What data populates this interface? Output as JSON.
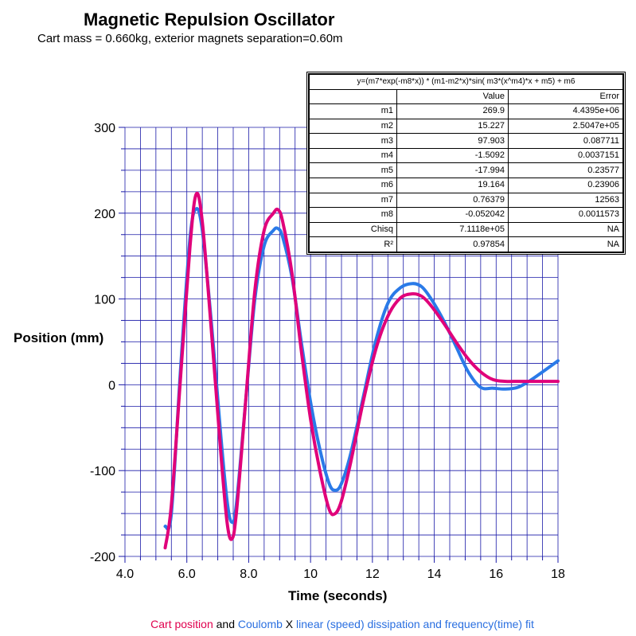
{
  "title": "Magnetic Repulsion Oscillator",
  "subtitle": "Cart mass = 0.660kg, exterior magnets separation=0.60m",
  "caption": {
    "part1": "Cart position",
    "part2": " and ",
    "part3": "Coulomb",
    "part4": " X ",
    "part5": "linear (speed) dissipation and frequency(time) fit"
  },
  "colors": {
    "measured": "#e0007a",
    "fit": "#2a7ae8",
    "grid": "#1a1aa8",
    "caption_red": "#e0004e",
    "caption_blue": "#2a6fe0"
  },
  "fit_table": {
    "equation": "y=(m7*exp(-m8*x)) * (m1-m2*x)*sin( m3*(x^m4)*x + m5) + m6",
    "header": {
      "value": "Value",
      "error": "Error"
    },
    "rows": [
      {
        "name": "m1",
        "value": "269.9",
        "error": "4.4395e+06"
      },
      {
        "name": "m2",
        "value": "15.227",
        "error": "2.5047e+05"
      },
      {
        "name": "m3",
        "value": "97.903",
        "error": "0.087711"
      },
      {
        "name": "m4",
        "value": "-1.5092",
        "error": "0.0037151"
      },
      {
        "name": "m5",
        "value": "-17.994",
        "error": "0.23577"
      },
      {
        "name": "m6",
        "value": "19.164",
        "error": "0.23906"
      },
      {
        "name": "m7",
        "value": "0.76379",
        "error": "12563"
      },
      {
        "name": "m8",
        "value": "-0.052042",
        "error": "0.0011573"
      },
      {
        "name": "Chisq",
        "value": "7.1118e+05",
        "error": "NA"
      },
      {
        "name": "R²",
        "value": "0.97854",
        "error": "NA"
      }
    ]
  },
  "chart_data": {
    "type": "line",
    "title": "Magnetic Repulsion Oscillator",
    "xlabel": "Time (seconds)",
    "ylabel": "Position (mm)",
    "xlim": [
      4.0,
      18.0
    ],
    "ylim": [
      -200,
      300
    ],
    "x_ticks": [
      4,
      6,
      8,
      10,
      12,
      14,
      16,
      18
    ],
    "x_tick_labels": [
      "4.0",
      "6.0",
      "8.0",
      "10",
      "12",
      "14",
      "16",
      "18"
    ],
    "y_ticks": [
      -200,
      -100,
      0,
      100,
      200,
      300
    ],
    "y_tick_labels": [
      "-200",
      "-100",
      "0",
      "100",
      "200",
      "300"
    ],
    "grid": true,
    "series": [
      {
        "name": "Cart position",
        "color": "#e0007a",
        "x": [
          5.3,
          5.5,
          5.8,
          6.1,
          6.3,
          6.5,
          6.8,
          7.1,
          7.3,
          7.45,
          7.6,
          7.9,
          8.2,
          8.5,
          8.8,
          8.95,
          9.1,
          9.4,
          9.7,
          10.0,
          10.3,
          10.6,
          10.8,
          11.0,
          11.3,
          11.7,
          12.1,
          12.5,
          12.9,
          13.3,
          13.6,
          13.9,
          14.3,
          14.7,
          15.1,
          15.5,
          15.9,
          16.3,
          16.7,
          17.1,
          17.5,
          18.0
        ],
        "y": [
          -190,
          -140,
          10,
          160,
          222,
          190,
          60,
          -80,
          -160,
          -180,
          -150,
          -20,
          110,
          180,
          200,
          204,
          190,
          130,
          40,
          -40,
          -100,
          -145,
          -150,
          -135,
          -90,
          -20,
          40,
          80,
          101,
          106,
          103,
          92,
          72,
          50,
          30,
          15,
          6,
          4,
          4,
          4,
          4,
          4
        ]
      },
      {
        "name": "Coulomb X linear (speed) dissipation and frequency(time) fit",
        "color": "#2a7ae8",
        "x": [
          5.3,
          5.5,
          5.8,
          6.1,
          6.3,
          6.5,
          6.8,
          7.1,
          7.3,
          7.45,
          7.6,
          7.9,
          8.2,
          8.5,
          8.8,
          8.95,
          9.1,
          9.4,
          9.7,
          10.0,
          10.3,
          10.6,
          10.8,
          11.0,
          11.3,
          11.7,
          12.1,
          12.5,
          12.9,
          13.3,
          13.6,
          13.9,
          14.3,
          14.7,
          15.1,
          15.5,
          15.9,
          16.3,
          16.7,
          17.1,
          17.5,
          18.0
        ],
        "y": [
          -165,
          -150,
          20,
          170,
          205,
          180,
          70,
          -60,
          -135,
          -160,
          -140,
          -20,
          100,
          162,
          180,
          182,
          172,
          125,
          50,
          -20,
          -75,
          -115,
          -123,
          -115,
          -80,
          -15,
          50,
          95,
          113,
          118,
          114,
          100,
          75,
          45,
          15,
          -3,
          -4,
          -5,
          -3,
          5,
          15,
          28
        ]
      }
    ]
  }
}
